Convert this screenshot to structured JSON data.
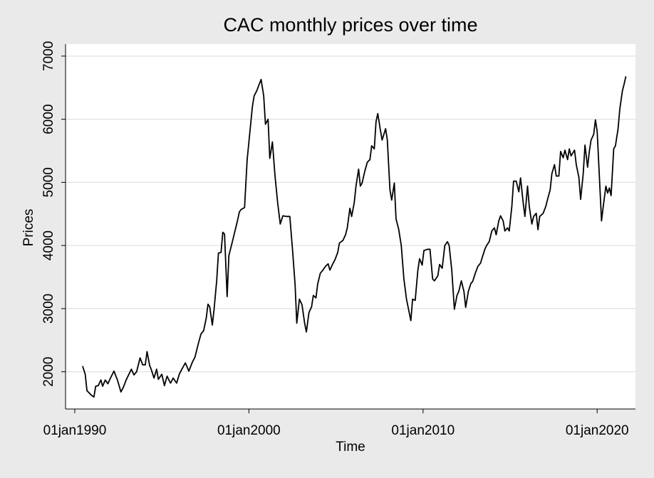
{
  "chart_data": {
    "type": "line",
    "title": "CAC monthly prices over time",
    "x_label": "Time",
    "y_label": "Prices",
    "series": [
      {
        "name": "Prices",
        "color": "#000000",
        "x": [
          1990.45,
          1990.6,
          1990.7,
          1990.95,
          1991.1,
          1991.2,
          1991.35,
          1991.5,
          1991.6,
          1991.75,
          1991.9,
          1992.05,
          1992.25,
          1992.45,
          1992.65,
          1992.8,
          1992.95,
          1993.25,
          1993.4,
          1993.55,
          1993.75,
          1993.9,
          1994.05,
          1994.15,
          1994.3,
          1994.4,
          1994.55,
          1994.7,
          1994.8,
          1995.0,
          1995.15,
          1995.3,
          1995.5,
          1995.65,
          1995.85,
          1996.0,
          1996.15,
          1996.35,
          1996.55,
          1996.75,
          1996.9,
          1997.1,
          1997.25,
          1997.4,
          1997.55,
          1997.65,
          1997.75,
          1997.9,
          1998.0,
          1998.15,
          1998.25,
          1998.4,
          1998.5,
          1998.6,
          1998.75,
          1998.85,
          1999.05,
          1999.2,
          1999.35,
          1999.45,
          1999.55,
          1999.75,
          1999.9,
          2000.0,
          2000.2,
          2000.3,
          2000.45,
          2000.6,
          2000.7,
          2000.85,
          2000.95,
          2001.1,
          2001.2,
          2001.35,
          2001.5,
          2001.65,
          2001.8,
          2001.95,
          2002.15,
          2002.35,
          2002.5,
          2002.65,
          2002.75,
          2002.9,
          2003.05,
          2003.2,
          2003.3,
          2003.45,
          2003.6,
          2003.7,
          2003.85,
          2003.95,
          2004.1,
          2004.25,
          2004.4,
          2004.55,
          2004.65,
          2004.8,
          2004.95,
          2005.1,
          2005.2,
          2005.4,
          2005.55,
          2005.65,
          2005.8,
          2005.9,
          2006.05,
          2006.15,
          2006.3,
          2006.4,
          2006.5,
          2006.65,
          2006.8,
          2006.95,
          2007.05,
          2007.2,
          2007.3,
          2007.4,
          2007.55,
          2007.65,
          2007.85,
          2007.95,
          2008.1,
          2008.2,
          2008.35,
          2008.45,
          2008.6,
          2008.75,
          2008.9,
          2009.05,
          2009.3,
          2009.4,
          2009.55,
          2009.7,
          2009.8,
          2009.95,
          2010.05,
          2010.25,
          2010.4,
          2010.55,
          2010.65,
          2010.85,
          2010.95,
          2011.1,
          2011.25,
          2011.4,
          2011.5,
          2011.65,
          2011.8,
          2011.95,
          2012.05,
          2012.2,
          2012.35,
          2012.45,
          2012.6,
          2012.75,
          2012.85,
          2013.0,
          2013.15,
          2013.3,
          2013.4,
          2013.55,
          2013.65,
          2013.8,
          2013.95,
          2014.1,
          2014.2,
          2014.35,
          2014.45,
          2014.6,
          2014.7,
          2014.85,
          2014.95,
          2015.1,
          2015.2,
          2015.35,
          2015.5,
          2015.6,
          2015.75,
          2015.85,
          2016.0,
          2016.1,
          2016.25,
          2016.35,
          2016.5,
          2016.6,
          2016.7,
          2016.9,
          2017.05,
          2017.15,
          2017.3,
          2017.4,
          2017.55,
          2017.65,
          2017.8,
          2017.9,
          2018.05,
          2018.15,
          2018.3,
          2018.4,
          2018.5,
          2018.7,
          2018.8,
          2018.95,
          2019.05,
          2019.2,
          2019.3,
          2019.45,
          2019.55,
          2019.65,
          2019.8,
          2019.9,
          2020.0,
          2020.15,
          2020.25,
          2020.35,
          2020.5,
          2020.6,
          2020.7,
          2020.8,
          2020.95,
          2021.05,
          2021.2,
          2021.3,
          2021.45,
          2021.55,
          2021.65
        ],
        "values": [
          2090,
          1960,
          1700,
          1630,
          1600,
          1770,
          1780,
          1870,
          1770,
          1870,
          1810,
          1900,
          2010,
          1870,
          1680,
          1760,
          1870,
          2040,
          1950,
          2000,
          2220,
          2110,
          2110,
          2320,
          2100,
          2030,
          1900,
          2040,
          1880,
          1960,
          1780,
          1930,
          1820,
          1900,
          1820,
          1960,
          2040,
          2140,
          2010,
          2150,
          2230,
          2450,
          2600,
          2650,
          2850,
          3070,
          3030,
          2740,
          2990,
          3440,
          3880,
          3890,
          4210,
          4180,
          3190,
          3840,
          4060,
          4230,
          4400,
          4530,
          4570,
          4600,
          5360,
          5640,
          6200,
          6370,
          6450,
          6560,
          6630,
          6370,
          5920,
          6000,
          5380,
          5640,
          5100,
          4680,
          4340,
          4470,
          4460,
          4460,
          3950,
          3390,
          2770,
          3150,
          3060,
          2770,
          2630,
          2940,
          3030,
          3210,
          3170,
          3390,
          3560,
          3610,
          3670,
          3710,
          3610,
          3700,
          3780,
          3890,
          4040,
          4080,
          4170,
          4280,
          4590,
          4460,
          4680,
          4940,
          5210,
          4940,
          4990,
          5170,
          5320,
          5360,
          5580,
          5530,
          5960,
          6090,
          5830,
          5670,
          5850,
          5670,
          4880,
          4720,
          4990,
          4420,
          4260,
          4000,
          3470,
          3150,
          2810,
          3150,
          3130,
          3600,
          3790,
          3690,
          3920,
          3940,
          3940,
          3470,
          3440,
          3520,
          3700,
          3640,
          4000,
          4060,
          4000,
          3610,
          2990,
          3210,
          3270,
          3440,
          3270,
          3020,
          3270,
          3400,
          3430,
          3560,
          3670,
          3720,
          3810,
          3940,
          4000,
          4060,
          4230,
          4280,
          4170,
          4390,
          4470,
          4390,
          4230,
          4280,
          4230,
          4620,
          5020,
          5020,
          4850,
          5070,
          4680,
          4460,
          4940,
          4620,
          4340,
          4460,
          4510,
          4250,
          4460,
          4510,
          4620,
          4730,
          4880,
          5140,
          5280,
          5100,
          5100,
          5490,
          5390,
          5510,
          5360,
          5530,
          5420,
          5510,
          5280,
          5080,
          4730,
          5140,
          5590,
          5240,
          5490,
          5670,
          5760,
          5990,
          5810,
          4960,
          4390,
          4620,
          4940,
          4830,
          4910,
          4790,
          5530,
          5580,
          5850,
          6160,
          6450,
          6560,
          6680
        ]
      }
    ],
    "xlim": [
      1989.47,
      2022.2
    ],
    "xticks": [
      {
        "value": 1990,
        "label": "01jan1990"
      },
      {
        "value": 2000,
        "label": "01jan2000"
      },
      {
        "value": 2010,
        "label": "01jan2010"
      },
      {
        "value": 2020,
        "label": "01jan2020"
      }
    ],
    "ylim": [
      1410,
      7190
    ],
    "yticks": [
      2000,
      3000,
      4000,
      5000,
      6000,
      7000
    ],
    "grid": true
  }
}
